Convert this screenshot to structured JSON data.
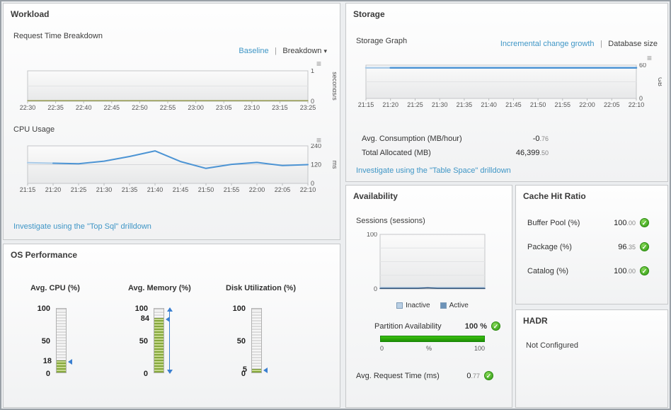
{
  "icons": {
    "check": "✓",
    "caret_down": "▾",
    "chart_menu": "≡"
  },
  "colors": {
    "link": "#3f96c6",
    "line_blue": "#4c94d4",
    "line_blue_light": "#a9cbe8",
    "line_olive": "#8a8f34",
    "gauge_green": "#86a83d",
    "bar_green": "#2aa308",
    "check_green": "#2f9a12",
    "inactive_blue": "#b9cfe4",
    "active_blue": "#6d93b8"
  },
  "workload": {
    "title": "Workload",
    "request_time": {
      "label": "Request Time Breakdown",
      "baseline_link": "Baseline",
      "divider": "|",
      "breakdown_link": "Breakdown",
      "chart": {
        "type": "line",
        "x_labels": [
          "22:30",
          "22:35",
          "22:40",
          "22:45",
          "22:50",
          "22:55",
          "23:00",
          "23:05",
          "23:10",
          "23:15",
          "23:25"
        ],
        "ymin": 0,
        "ymax": 1,
        "yticks": [
          1,
          0
        ],
        "ygrid": [
          0.5
        ],
        "y_side": "right",
        "y_unit": "seconds/s",
        "series": [
          {
            "name": "request-time",
            "color": "#8a8f34",
            "width": 1.2,
            "values": [
              0.02,
              0.02,
              0.02,
              0.02,
              0.02,
              0.02,
              0.02,
              0.02,
              0.02,
              0.02,
              0.02
            ]
          }
        ]
      }
    },
    "cpu_usage": {
      "label": "CPU Usage",
      "chart": {
        "type": "line",
        "x_labels": [
          "21:15",
          "21:20",
          "21:25",
          "21:30",
          "21:35",
          "21:40",
          "21:45",
          "21:50",
          "21:55",
          "22:00",
          "22:05",
          "22:10"
        ],
        "ymin": 0,
        "ymax": 240,
        "yticks": [
          240,
          120,
          0
        ],
        "ygrid": [],
        "y_side": "right",
        "y_unit": "ms",
        "series": [
          {
            "name": "cpu-early",
            "color": "#a9cbe8",
            "width": 2,
            "values": [
              132,
              129,
              null,
              null,
              null,
              null,
              null,
              null,
              null,
              null,
              null,
              null
            ]
          },
          {
            "name": "cpu",
            "color": "#4c94d4",
            "width": 2,
            "values": [
              null,
              129,
              126,
              142,
              172,
              208,
              140,
              96,
              122,
              134,
              114,
              120
            ]
          }
        ]
      }
    },
    "drilldown": "Investigate using the \"Top Sql\" drilldown"
  },
  "os_performance": {
    "title": "OS Performance",
    "scale": [
      "100",
      "50",
      "0"
    ],
    "gauges": [
      {
        "label": "Avg. CPU (%)",
        "display": "18",
        "value": 18,
        "max": 100
      },
      {
        "label": "Avg. Memory (%)",
        "display": "84",
        "value": 84,
        "max": 100
      },
      {
        "label": "Disk Utilization (%)",
        "display": "5",
        "value": 5,
        "max": 100
      }
    ]
  },
  "storage": {
    "title": "Storage",
    "graph_label": "Storage Graph",
    "incremental_link": "Incremental change growth",
    "divider": "|",
    "database_link": "Database size",
    "chart": {
      "type": "line",
      "x_labels": [
        "21:15",
        "21:20",
        "21:25",
        "21:30",
        "21:35",
        "21:40",
        "21:45",
        "21:50",
        "21:55",
        "22:00",
        "22:05",
        "22:10"
      ],
      "ymin": 0,
      "ymax": 60,
      "yticks": [
        60,
        0
      ],
      "ygrid": [
        30
      ],
      "y_side": "right",
      "y_unit": "GB",
      "series": [
        {
          "name": "storage-early",
          "color": "#a9cbe8",
          "width": 2.5,
          "values": [
            55.2,
            55.2,
            null,
            null,
            null,
            null,
            null,
            null,
            null,
            null,
            null,
            null
          ]
        },
        {
          "name": "storage",
          "color": "#4c94d4",
          "width": 2.5,
          "values": [
            null,
            55.2,
            55.2,
            55.2,
            55.2,
            55.2,
            55.2,
            55.2,
            55.2,
            55.2,
            55.2,
            55.2
          ]
        }
      ]
    },
    "rows": [
      {
        "label": "Avg. Consumption (MB/hour)",
        "whole": "-0",
        "frac": ".76"
      },
      {
        "label": "Total Allocated (MB)",
        "whole": "46,399",
        "frac": ".50"
      }
    ],
    "drilldown": "Investigate using the \"Table Space\" drilldown"
  },
  "availability": {
    "title": "Availability",
    "sessions_label": "Sessions (sessions)",
    "chart": {
      "type": "line",
      "x_labels": [],
      "ymin": 0,
      "ymax": 100,
      "yticks": [
        100,
        0
      ],
      "ygrid": [
        25,
        50,
        75
      ],
      "y_side": "left",
      "series": [
        {
          "name": "inactive",
          "color": "#b9cfe4",
          "width": 1.5,
          "values": [
            3,
            3,
            3,
            3,
            3,
            3,
            3,
            3,
            3,
            3,
            3,
            3
          ]
        },
        {
          "name": "active",
          "color": "#31537a",
          "width": 1.5,
          "values": [
            1,
            1,
            1,
            1,
            1,
            2,
            1,
            1,
            1,
            1,
            1,
            1
          ]
        }
      ]
    },
    "legend": [
      {
        "label": "Inactive",
        "color": "#b9cfe4"
      },
      {
        "label": "Active",
        "color": "#6d93b8"
      }
    ],
    "partition": {
      "label": "Partition Availability",
      "value": "100 %"
    },
    "partition_scale": {
      "left": "0",
      "mid": "%",
      "right": "100"
    },
    "request_time": {
      "label": "Avg. Request Time (ms)",
      "whole": "0",
      "frac": ".77"
    }
  },
  "cache": {
    "title": "Cache Hit Ratio",
    "rows": [
      {
        "label": "Buffer Pool (%)",
        "whole": "100",
        "frac": ".00"
      },
      {
        "label": "Package (%)",
        "whole": "96",
        "frac": ".35"
      },
      {
        "label": "Catalog (%)",
        "whole": "100",
        "frac": ".00"
      }
    ]
  },
  "hadr": {
    "title": "HADR",
    "status": "Not Configured"
  }
}
